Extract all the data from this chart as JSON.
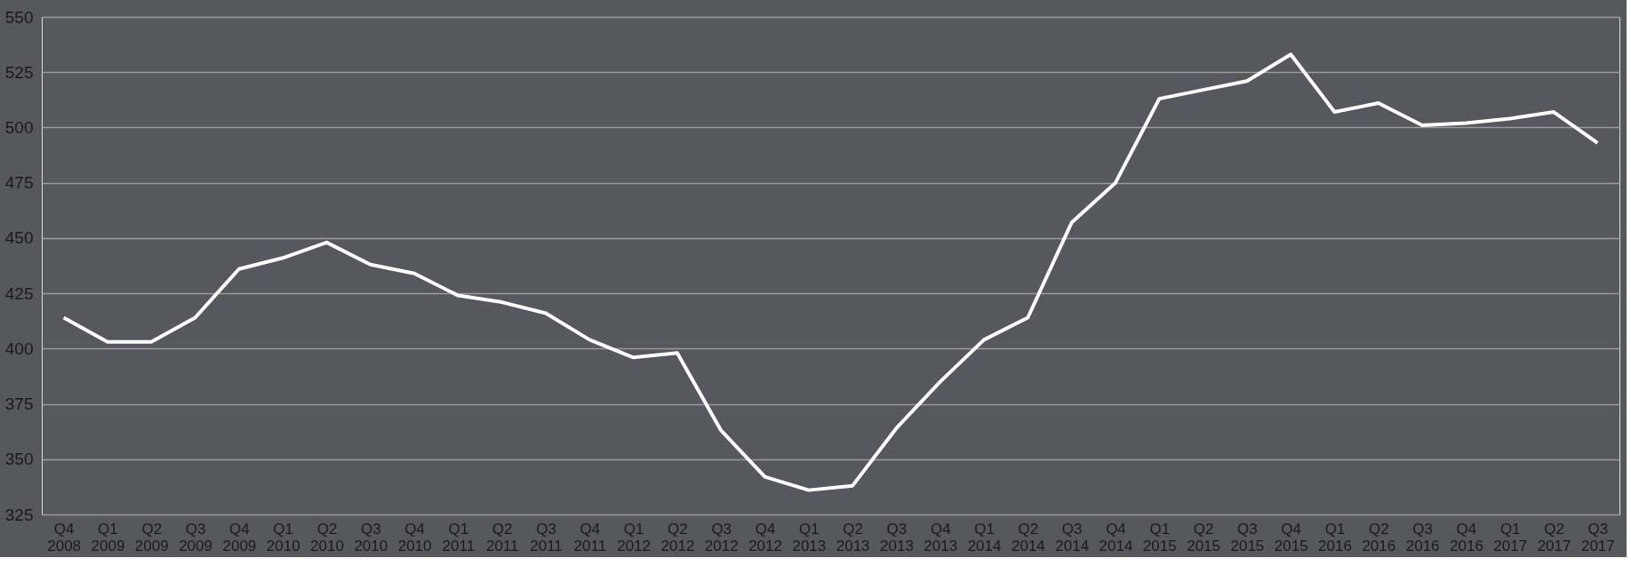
{
  "chart_data": {
    "type": "line",
    "categories": [
      "Q4 2008",
      "Q1 2009",
      "Q2 2009",
      "Q3 2009",
      "Q4 2009",
      "Q1 2010",
      "Q2 2010",
      "Q3 2010",
      "Q4 2010",
      "Q1 2011",
      "Q2 2011",
      "Q3 2011",
      "Q4 2011",
      "Q1 2012",
      "Q2 2012",
      "Q3 2012",
      "Q4 2012",
      "Q1 2013",
      "Q2 2013",
      "Q3 2013",
      "Q4 2013",
      "Q1 2014",
      "Q2 2014",
      "Q3 2014",
      "Q4 2014",
      "Q1 2015",
      "Q2 2015",
      "Q3 2015",
      "Q4 2015",
      "Q1 2016",
      "Q2 2016",
      "Q3 2016",
      "Q4 2016",
      "Q1 2017",
      "Q2 2017",
      "Q3 2017"
    ],
    "series": [
      {
        "color": "#ffffff",
        "values": [
          414,
          403,
          403,
          414,
          436,
          441,
          448,
          438,
          434,
          424,
          421,
          416,
          404,
          396,
          398,
          363,
          342,
          336,
          338,
          364,
          385,
          404,
          414,
          457,
          475,
          513,
          517,
          521,
          533,
          507,
          511,
          501,
          502,
          504,
          507,
          493
        ]
      }
    ],
    "ylim": [
      325,
      550
    ],
    "yticks": [
      325,
      350,
      375,
      400,
      425,
      450,
      475,
      500,
      525,
      550
    ],
    "grid": "y",
    "legend": false,
    "marker": "none",
    "line_style": "solid"
  }
}
